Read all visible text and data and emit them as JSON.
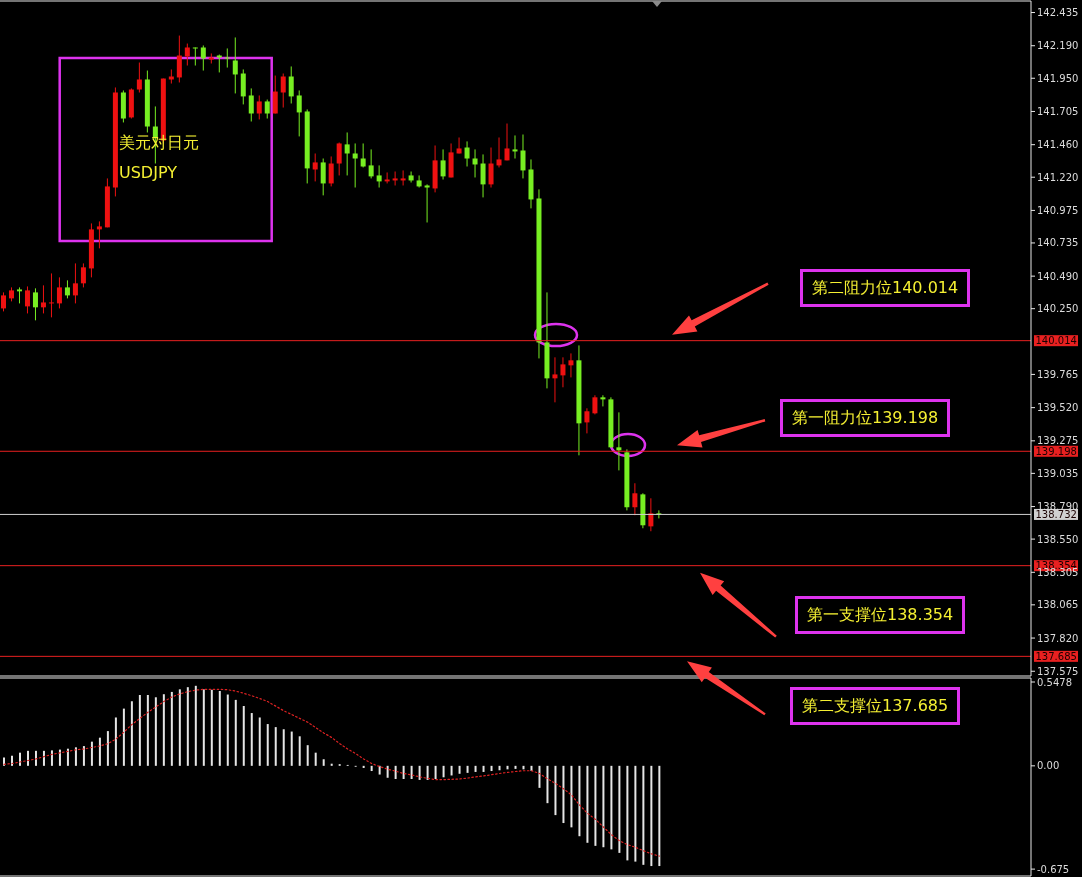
{
  "chart_data": [
    {
      "type": "candlestick",
      "title": "美元对日元",
      "subtitle": "USDJPY",
      "categories": [
        null,
        null,
        null,
        null,
        null,
        null,
        null,
        null,
        null,
        null,
        null,
        null,
        null,
        null,
        null,
        null,
        null,
        null,
        null,
        null,
        null,
        null,
        null,
        null,
        null,
        null,
        null,
        null,
        null,
        null,
        null,
        null,
        null,
        null,
        null,
        null,
        null,
        null,
        null,
        null,
        null,
        null,
        null,
        null,
        null,
        null,
        null,
        null,
        null,
        null,
        null,
        null,
        null,
        null,
        null,
        null,
        null,
        null,
        null,
        null,
        null,
        null,
        null,
        null,
        null,
        null,
        null,
        null,
        null,
        null,
        null,
        null,
        null,
        null,
        null,
        null,
        null,
        null,
        null,
        null,
        null,
        null,
        null,
        null,
        null,
        null,
        null,
        null,
        null,
        null,
        null,
        null,
        null,
        null,
        null,
        null,
        null,
        null,
        null,
        null,
        null,
        null,
        null,
        null,
        null,
        null,
        null,
        null,
        null,
        null,
        null,
        null,
        null,
        null,
        null,
        null,
        null,
        null,
        null,
        null,
        null,
        null,
        null,
        null,
        null,
        null,
        null,
        null,
        null
      ],
      "ohlc": [
        [
          140.252,
          140.37,
          140.23,
          140.348
        ],
        [
          140.326,
          140.407,
          140.304,
          140.385
        ],
        [
          140.392,
          140.407,
          140.289,
          140.378
        ],
        [
          140.267,
          140.414,
          140.215,
          140.385
        ],
        [
          140.37,
          140.4,
          140.164,
          140.26
        ],
        [
          140.26,
          140.422,
          140.215,
          140.296
        ],
        [
          140.289,
          140.51,
          140.186,
          140.296
        ],
        [
          140.289,
          140.481,
          140.252,
          140.407
        ],
        [
          140.407,
          140.459,
          140.326,
          140.348
        ],
        [
          140.348,
          140.584,
          140.289,
          140.437
        ],
        [
          140.437,
          140.584,
          140.407,
          140.555
        ],
        [
          140.547,
          140.879,
          140.481,
          140.835
        ],
        [
          140.835,
          140.894,
          140.695,
          140.857
        ],
        [
          140.85,
          141.211,
          140.85,
          141.152
        ],
        [
          141.144,
          141.882,
          141.078,
          141.845
        ],
        [
          141.845,
          141.86,
          141.624,
          141.653
        ],
        [
          141.661,
          141.875,
          141.653,
          141.867
        ],
        [
          141.867,
          142.066,
          141.845,
          141.941
        ],
        [
          141.941,
          142.007,
          141.55,
          141.594
        ],
        [
          141.594,
          141.742,
          141.321,
          141.506
        ],
        [
          141.491,
          141.948,
          141.469,
          141.948
        ],
        [
          141.941,
          142.015,
          141.911,
          141.963
        ],
        [
          141.956,
          142.265,
          141.919,
          142.118
        ],
        [
          142.111,
          142.206,
          142.044,
          142.177
        ],
        [
          142.177,
          142.177,
          142.044,
          142.17
        ],
        [
          142.177,
          142.192,
          142.007,
          142.096
        ],
        [
          142.088,
          142.133,
          142.059,
          142.103
        ],
        [
          142.118,
          142.125,
          141.993,
          142.103
        ],
        [
          142.103,
          142.17,
          142.029,
          142.096
        ],
        [
          142.081,
          142.251,
          141.838,
          141.978
        ],
        [
          141.985,
          142.015,
          141.757,
          141.816
        ],
        [
          141.823,
          141.875,
          141.631,
          141.69
        ],
        [
          141.69,
          141.823,
          141.646,
          141.779
        ],
        [
          141.779,
          141.793,
          141.653,
          141.69
        ],
        [
          141.69,
          141.97,
          141.69,
          141.852
        ],
        [
          141.845,
          141.985,
          141.734,
          141.963
        ],
        [
          141.963,
          142.037,
          141.764,
          141.816
        ],
        [
          141.823,
          141.86,
          141.521,
          141.698
        ],
        [
          141.705,
          141.72,
          141.174,
          141.285
        ],
        [
          141.277,
          141.395,
          141.189,
          141.329
        ],
        [
          141.329,
          141.358,
          141.086,
          141.174
        ],
        [
          141.174,
          141.373,
          141.152,
          141.321
        ],
        [
          141.321,
          141.476,
          141.233,
          141.469
        ],
        [
          141.462,
          141.55,
          141.233,
          141.395
        ],
        [
          141.395,
          141.469,
          141.144,
          141.358
        ],
        [
          141.358,
          141.469,
          141.292,
          141.299
        ],
        [
          141.307,
          141.425,
          141.211,
          141.226
        ],
        [
          141.233,
          141.307,
          141.144,
          141.189
        ],
        [
          141.189,
          141.255,
          141.174,
          141.203
        ],
        [
          141.196,
          141.262,
          141.159,
          141.211
        ],
        [
          141.196,
          141.27,
          141.159,
          141.211
        ],
        [
          141.233,
          141.262,
          141.181,
          141.196
        ],
        [
          141.196,
          141.233,
          141.144,
          141.152
        ],
        [
          141.159,
          141.167,
          140.886,
          141.144
        ],
        [
          141.137,
          141.454,
          141.108,
          141.344
        ],
        [
          141.344,
          141.425,
          141.203,
          141.226
        ],
        [
          141.218,
          141.469,
          141.218,
          141.403
        ],
        [
          141.395,
          141.513,
          141.395,
          141.432
        ],
        [
          141.439,
          141.484,
          141.299,
          141.358
        ],
        [
          141.358,
          141.425,
          141.218,
          141.314
        ],
        [
          141.321,
          141.388,
          141.071,
          141.167
        ],
        [
          141.167,
          141.439,
          141.144,
          141.321
        ],
        [
          141.307,
          141.513,
          141.292,
          141.351
        ],
        [
          141.344,
          141.616,
          141.344,
          141.432
        ],
        [
          141.425,
          141.528,
          141.358,
          141.41
        ],
        [
          141.417,
          141.535,
          141.211,
          141.27
        ],
        [
          141.277,
          141.351,
          140.99,
          141.056
        ],
        [
          141.063,
          141.13,
          139.883,
          140.001
        ],
        [
          140.001,
          140.37,
          139.662,
          139.736
        ],
        [
          139.736,
          139.891,
          139.559,
          139.765
        ],
        [
          139.758,
          139.891,
          139.67,
          139.839
        ],
        [
          139.832,
          139.92,
          139.743,
          139.869
        ],
        [
          139.869,
          139.979,
          139.168,
          139.404
        ],
        [
          139.411,
          139.515,
          139.33,
          139.493
        ],
        [
          139.478,
          139.611,
          139.47,
          139.596
        ],
        [
          139.596,
          139.611,
          139.529,
          139.581
        ],
        [
          139.581,
          139.596,
          139.227,
          139.227
        ],
        [
          139.227,
          139.485,
          139.057,
          139.205
        ],
        [
          139.19,
          139.212,
          138.762,
          138.785
        ],
        [
          138.785,
          138.962,
          138.726,
          138.888
        ],
        [
          138.88,
          138.888,
          138.63,
          138.652
        ],
        [
          138.644,
          138.851,
          138.608,
          138.74
        ],
        [
          138.74,
          138.762,
          138.703,
          138.732
        ],
        null,
        null,
        null,
        null,
        null,
        null,
        null,
        null,
        null,
        null,
        null,
        null,
        null,
        null,
        null,
        null,
        null,
        null,
        null,
        null,
        null,
        null,
        null,
        null,
        null,
        null,
        null,
        null,
        null,
        null,
        null,
        null,
        null,
        null,
        null,
        null,
        null,
        null,
        null,
        null,
        null,
        null,
        null,
        null,
        null,
        null
      ],
      "colors": [
        "#ee1111",
        "#ee1111",
        "#77ee22",
        "#ee1111",
        "#77ee22",
        "#ee1111",
        "#ee1111",
        "#ee1111",
        "#77ee22",
        "#ee1111",
        "#ee1111",
        "#ee1111",
        "#ee1111",
        "#ee1111",
        "#ee1111",
        "#77ee22",
        "#ee1111",
        "#ee1111",
        "#77ee22",
        "#77ee22",
        "#ee1111",
        "#ee1111",
        "#ee1111",
        "#ee1111",
        "#77ee22",
        "#77ee22",
        "#ee1111",
        "#77ee22",
        "#77ee22",
        "#77ee22",
        "#77ee22",
        "#77ee22",
        "#ee1111",
        "#77ee22",
        "#ee1111",
        "#ee1111",
        "#77ee22",
        "#77ee22",
        "#77ee22",
        "#ee1111",
        "#77ee22",
        "#ee1111",
        "#ee1111",
        "#77ee22",
        "#77ee22",
        "#77ee22",
        "#77ee22",
        "#77ee22",
        "#ee1111",
        "#ee1111",
        "#ee1111",
        "#77ee22",
        "#77ee22",
        "#77ee22",
        "#ee1111",
        "#77ee22",
        "#ee1111",
        "#ee1111",
        "#77ee22",
        "#77ee22",
        "#77ee22",
        "#ee1111",
        "#ee1111",
        "#ee1111",
        "#77ee22",
        "#77ee22",
        "#77ee22",
        "#77ee22",
        "#77ee22",
        "#ee1111",
        "#ee1111",
        "#ee1111",
        "#77ee22",
        "#ee1111",
        "#ee1111",
        "#77ee22",
        "#77ee22",
        "#77ee22",
        "#77ee22",
        "#ee1111",
        "#77ee22",
        "#ee1111",
        "#77ee22",
        null,
        null,
        null,
        null,
        null,
        null,
        null,
        null,
        null,
        null,
        null,
        null,
        null,
        null,
        null,
        null,
        null,
        null,
        null,
        null,
        null,
        null,
        null,
        null,
        null,
        null,
        null,
        null,
        null,
        null,
        null,
        null,
        null,
        null,
        null,
        null,
        null,
        null,
        null,
        null,
        null,
        null,
        null,
        null,
        null,
        null
      ],
      "ylim": [
        137.54,
        142.52
      ],
      "yticks": [
        142.435,
        {
          "value": 142.19,
          "label": "142.190"
        },
        {
          "value": 141.95,
          "label": "141.950"
        },
        141.705,
        {
          "value": 141.46,
          "label": "141.460"
        },
        {
          "value": 141.22,
          "label": "141.220"
        },
        140.975,
        140.735,
        {
          "value": 140.49,
          "label": "140.490"
        },
        {
          "value": 140.25,
          "label": "140.250"
        },
        139.765,
        {
          "value": 139.52,
          "label": "139.520"
        },
        139.275,
        139.035,
        {
          "value": 138.79,
          "label": "138.790"
        },
        {
          "value": 138.55,
          "label": "138.550"
        },
        138.305,
        138.065,
        {
          "value": 137.82,
          "label": "137.820"
        },
        137.575
      ],
      "tick_labels": "y",
      "ref_lines": [
        {
          "axis": "y",
          "value": 140.014,
          "label": "140.014",
          "color": "#e82020"
        },
        {
          "axis": "y",
          "value": 139.198,
          "label": "139.198",
          "color": "#e82020"
        },
        {
          "axis": "y",
          "value": 138.732,
          "label": "138.732",
          "color": "#d0d0d0"
        },
        {
          "axis": "y",
          "value": 138.354,
          "label": "138.354",
          "color": "#e82020"
        },
        {
          "axis": "y",
          "value": 137.685,
          "label": "137.685",
          "color": "#e82020"
        }
      ],
      "annotations": [
        {
          "text": "第二阻力位140.014",
          "y": 140.014
        },
        {
          "text": "第一阻力位139.198",
          "y": 139.198
        },
        {
          "text": "第一支撑位138.354",
          "y": 138.354
        },
        {
          "text": "第二支撑位137.685",
          "y": 137.685
        }
      ]
    },
    {
      "type": "bar",
      "categories": [
        null,
        null,
        null,
        null,
        null,
        null,
        null,
        null,
        null,
        null,
        null,
        null,
        null,
        null,
        null,
        null,
        null,
        null,
        null,
        null,
        null,
        null,
        null,
        null,
        null,
        null,
        null,
        null,
        null,
        null,
        null,
        null,
        null,
        null,
        null,
        null,
        null,
        null,
        null,
        null,
        null,
        null,
        null,
        null,
        null,
        null,
        null,
        null,
        null,
        null,
        null,
        null,
        null,
        null,
        null,
        null,
        null,
        null,
        null,
        null,
        null,
        null,
        null,
        null,
        null,
        null,
        null,
        null,
        null,
        null,
        null,
        null,
        null,
        null,
        null,
        null,
        null,
        null,
        null,
        null,
        null,
        null,
        null,
        null,
        null,
        null,
        null,
        null,
        null,
        null,
        null,
        null,
        null,
        null,
        null,
        null,
        null,
        null,
        null,
        null,
        null,
        null,
        null,
        null,
        null,
        null,
        null,
        null,
        null,
        null,
        null,
        null,
        null,
        null,
        null,
        null,
        null,
        null,
        null,
        null,
        null,
        null,
        null,
        null,
        null,
        null,
        null,
        null,
        null
      ],
      "series": [
        {
          "type": "bar",
          "color": "#e6e6e6",
          "values": [
            0.055,
            0.066,
            0.086,
            0.098,
            0.098,
            0.098,
            0.101,
            0.106,
            0.112,
            0.121,
            0.129,
            0.158,
            0.184,
            0.227,
            0.316,
            0.374,
            0.422,
            0.463,
            0.463,
            0.448,
            0.468,
            0.483,
            0.5,
            0.514,
            0.523,
            0.5,
            0.497,
            0.489,
            0.466,
            0.431,
            0.391,
            0.345,
            0.316,
            0.273,
            0.253,
            0.239,
            0.224,
            0.193,
            0.135,
            0.086,
            0.043,
            0.014,
            0.011,
            0.006,
            -0.006,
            -0.014,
            -0.034,
            -0.057,
            -0.078,
            -0.086,
            -0.086,
            -0.086,
            -0.092,
            -0.092,
            -0.086,
            -0.075,
            -0.063,
            -0.052,
            -0.046,
            -0.04,
            -0.04,
            -0.034,
            -0.029,
            -0.023,
            -0.02,
            -0.023,
            -0.034,
            -0.144,
            -0.244,
            -0.322,
            -0.374,
            -0.402,
            -0.46,
            -0.503,
            -0.523,
            -0.532,
            -0.546,
            -0.569,
            -0.618,
            -0.626,
            -0.647,
            -0.655,
            -0.655,
            null,
            null,
            null,
            null,
            null,
            null,
            null,
            null,
            null,
            null,
            null,
            null,
            null,
            null,
            null,
            null,
            null,
            null,
            null,
            null,
            null,
            null,
            null,
            null,
            null,
            null,
            null,
            null,
            null,
            null,
            null,
            null,
            null,
            null,
            null,
            null,
            null,
            null,
            null,
            null,
            null,
            null,
            null,
            null,
            null,
            null
          ]
        },
        {
          "type": "line",
          "color": "#dd2222",
          "line_style": "dotted",
          "values": [
            0.01,
            0.015,
            0.025,
            0.035,
            0.045,
            0.06,
            0.075,
            0.085,
            0.095,
            0.105,
            0.11,
            0.12,
            0.13,
            0.145,
            0.175,
            0.22,
            0.27,
            0.31,
            0.35,
            0.385,
            0.42,
            0.45,
            0.47,
            0.485,
            0.495,
            0.5,
            0.5,
            0.5,
            0.497,
            0.488,
            0.474,
            0.458,
            0.44,
            0.42,
            0.39,
            0.36,
            0.335,
            0.31,
            0.285,
            0.25,
            0.215,
            0.185,
            0.145,
            0.11,
            0.08,
            0.045,
            0.015,
            -0.005,
            -0.022,
            -0.035,
            -0.05,
            -0.06,
            -0.072,
            -0.082,
            -0.09,
            -0.09,
            -0.088,
            -0.086,
            -0.08,
            -0.072,
            -0.066,
            -0.058,
            -0.05,
            -0.043,
            -0.037,
            -0.032,
            -0.032,
            -0.05,
            -0.085,
            -0.115,
            -0.15,
            -0.19,
            -0.255,
            -0.31,
            -0.35,
            -0.4,
            -0.45,
            -0.49,
            -0.515,
            -0.532,
            -0.555,
            -0.575,
            -0.59,
            null,
            null,
            null,
            null,
            null,
            null,
            null,
            null,
            null,
            null,
            null,
            null,
            null,
            null,
            null,
            null,
            null,
            null,
            null,
            null,
            null,
            null,
            null,
            null,
            null,
            null,
            null,
            null,
            null,
            null,
            null,
            null,
            null,
            null,
            null,
            null,
            null,
            null,
            null,
            null,
            null,
            null,
            null,
            null,
            null,
            null
          ]
        }
      ],
      "ylim": [
        -0.72,
        0.574
      ],
      "yticks": [
        0.5478,
        {
          "value": 0,
          "label": "0.00"
        },
        -0.675
      ],
      "tick_labels": "y",
      "marker": "none"
    }
  ]
}
